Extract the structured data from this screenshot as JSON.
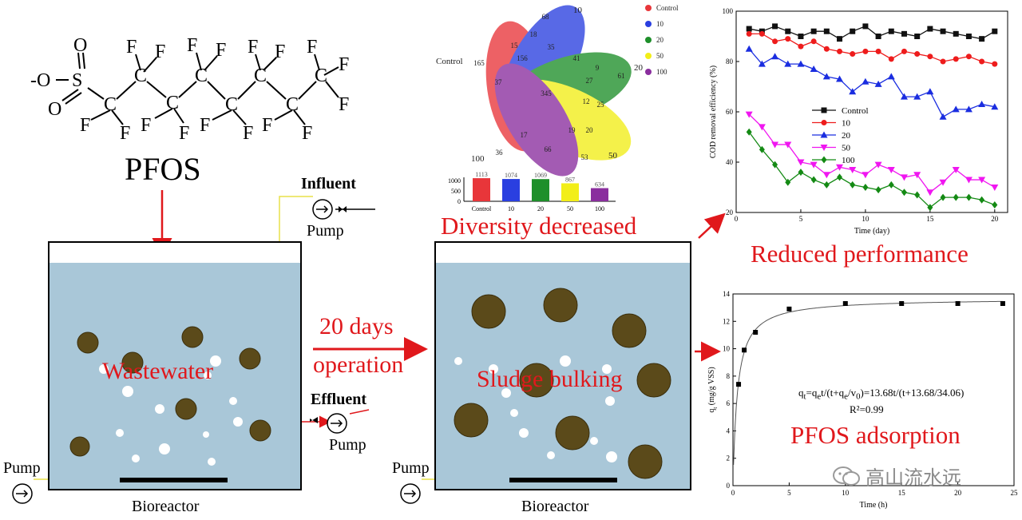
{
  "pfos": {
    "label": "PFOS",
    "atoms": {
      "oxygen_anion": "-O",
      "sulfur": "S",
      "oxygen": "O",
      "carbon": "C",
      "fluorine": "F"
    }
  },
  "reactor_left": {
    "water_label": "Wastewater",
    "caption": "Bioreactor",
    "influent_label": "Influent",
    "influent_pump_label": "Pump",
    "effluent_label": "Effluent",
    "effluent_pump_label": "Pump",
    "air_pump_label": "Pump"
  },
  "operation": {
    "line1": "20 days",
    "line2": "operation"
  },
  "reactor_right": {
    "water_label": "Sludge bulking",
    "caption": "Bioreactor",
    "air_pump_label": "Pump"
  },
  "venn": {
    "legend": [
      {
        "name": "Control",
        "color": "#e8363a"
      },
      {
        "name": "10",
        "color": "#2a3fe0"
      },
      {
        "name": "20",
        "color": "#1e8f2a"
      },
      {
        "name": "50",
        "color": "#f2ee18"
      },
      {
        "name": "100",
        "color": "#8a2e9e"
      }
    ],
    "set_labels": [
      "Control",
      "10",
      "20",
      "50",
      "100"
    ],
    "unique_counts": [
      "165",
      "68",
      "61",
      "53",
      "36"
    ],
    "inner_counts": [
      "345",
      "156",
      "18",
      "35",
      "41",
      "37",
      "27",
      "12",
      "17",
      "19",
      "20",
      "66",
      "15",
      "9",
      "25"
    ],
    "bar_values": [
      1113,
      1074,
      1069,
      867,
      634
    ],
    "bar_labels": [
      "1113",
      "1074",
      "1069",
      "867",
      "634"
    ],
    "bar_ticks": [
      "1000",
      "500",
      "0"
    ],
    "bar_categories": [
      "Control",
      "10",
      "20",
      "50",
      "100"
    ],
    "caption": "Diversity decreased"
  },
  "chart_data": [
    {
      "type": "line",
      "xlabel": "Time (day)",
      "ylabel": "COD removal efficiency (%)",
      "xlim": [
        0,
        21
      ],
      "ylim": [
        20,
        100
      ],
      "xticks": [
        "0",
        "5",
        "10",
        "15",
        "20"
      ],
      "yticks": [
        "20",
        "40",
        "60",
        "80",
        "100"
      ],
      "x": [
        1,
        2,
        3,
        4,
        5,
        6,
        7,
        8,
        9,
        10,
        11,
        12,
        13,
        14,
        15,
        16,
        17,
        18,
        19,
        20
      ],
      "legend_position": "center-left",
      "series": [
        {
          "name": "Control",
          "marker": "square",
          "color": "#111111",
          "values": [
            93,
            92,
            94,
            92,
            90,
            92,
            92,
            89,
            92,
            94,
            90,
            92,
            91,
            90,
            93,
            92,
            91,
            90,
            89,
            92
          ]
        },
        {
          "name": "10",
          "marker": "circle",
          "color": "#ee1c1c",
          "values": [
            91,
            91,
            88,
            89,
            86,
            88,
            85,
            84,
            83,
            84,
            84,
            81,
            84,
            83,
            82,
            80,
            81,
            82,
            80,
            79
          ]
        },
        {
          "name": "20",
          "marker": "triangle",
          "color": "#1a2de0",
          "values": [
            85,
            79,
            82,
            79,
            79,
            77,
            74,
            73,
            68,
            72,
            71,
            74,
            66,
            66,
            68,
            58,
            61,
            61,
            63,
            62
          ]
        },
        {
          "name": "50",
          "marker": "triangle-down",
          "color": "#f016f0",
          "values": [
            59,
            54,
            47,
            47,
            40,
            39,
            35,
            38,
            37,
            35,
            39,
            37,
            34,
            35,
            28,
            32,
            37,
            33,
            33,
            30
          ]
        },
        {
          "name": "100",
          "marker": "diamond",
          "color": "#148a14",
          "values": [
            52,
            45,
            39,
            32,
            36,
            33,
            31,
            34,
            31,
            30,
            29,
            31,
            28,
            27,
            22,
            26,
            26,
            26,
            25,
            23
          ]
        }
      ],
      "caption": "Reduced performance"
    },
    {
      "type": "scatter",
      "xlabel": "Time (h)",
      "ylabel_main": "q",
      "ylabel_sub": "t",
      "ylabel_rest": " (mg/g VSS)",
      "xlim": [
        0,
        25
      ],
      "ylim": [
        0,
        14
      ],
      "xticks": [
        "0",
        "5",
        "10",
        "15",
        "20",
        "25"
      ],
      "yticks": [
        "0",
        "2",
        "4",
        "6",
        "8",
        "10",
        "12",
        "14"
      ],
      "x": [
        0.5,
        1,
        2,
        5,
        10,
        15,
        20,
        24
      ],
      "values": [
        7.4,
        9.9,
        11.2,
        12.9,
        13.3,
        13.3,
        13.3,
        13.3
      ],
      "fit": {
        "qe": 13.68,
        "v0": 34.06
      },
      "equation_text": "q_t=q_et/(t+q_e/v_0)=13.68t/(t+13.68/34.06)",
      "r2_text": "R²=0.99",
      "caption": "PFOS adsorption"
    }
  ],
  "watermark": {
    "text": "高山流水远"
  }
}
